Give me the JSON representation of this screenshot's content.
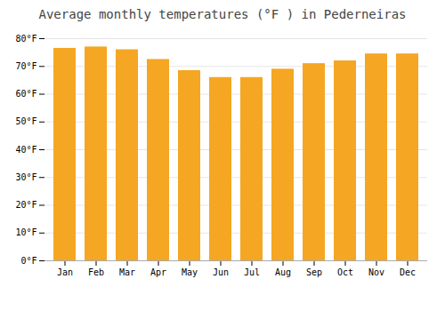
{
  "chart_data": {
    "type": "bar",
    "title": "Average monthly temperatures (°F ) in Pederneiras",
    "categories": [
      "Jan",
      "Feb",
      "Mar",
      "Apr",
      "May",
      "Jun",
      "Jul",
      "Aug",
      "Sep",
      "Oct",
      "Nov",
      "Dec"
    ],
    "values": [
      76.5,
      77.0,
      76.0,
      72.5,
      68.5,
      66.0,
      66.0,
      69.0,
      71.0,
      72.0,
      74.5,
      74.5
    ],
    "color": "#F5A623",
    "ylim": [
      0,
      80
    ],
    "yticks": [
      {
        "value": 0,
        "label": "0°F"
      },
      {
        "value": 10,
        "label": "10°F"
      },
      {
        "value": 20,
        "label": "20°F"
      },
      {
        "value": 30,
        "label": "30°F"
      },
      {
        "value": 40,
        "label": "40°F"
      },
      {
        "value": 50,
        "label": "50°F"
      },
      {
        "value": 60,
        "label": "60°F"
      },
      {
        "value": 70,
        "label": "70°F"
      },
      {
        "value": 80,
        "label": "80°F"
      }
    ],
    "grid": true
  }
}
